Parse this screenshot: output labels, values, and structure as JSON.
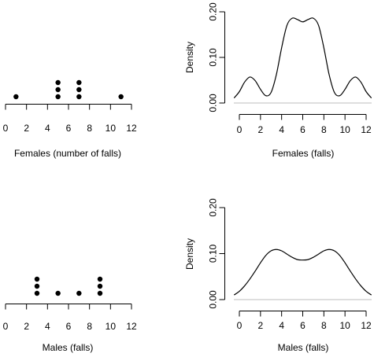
{
  "chart_data": [
    {
      "type": "scatter",
      "subtype": "dotplot",
      "xlabel": "Females (number of falls)",
      "xlim": [
        0,
        12
      ],
      "xticks": [
        0,
        2,
        4,
        6,
        8,
        10,
        12
      ],
      "values": [
        1,
        5,
        5,
        5,
        7,
        7,
        7,
        11
      ]
    },
    {
      "type": "line",
      "subtype": "density",
      "xlabel": "Females (falls)",
      "ylabel": "Density",
      "xlim": [
        0,
        12
      ],
      "ylim": [
        0,
        0.2
      ],
      "xticks": [
        0,
        2,
        4,
        6,
        8,
        10,
        12
      ],
      "yticks": [
        "0.00",
        "0.10",
        "0.20"
      ],
      "x": [
        -0.5,
        0,
        0.5,
        1,
        1.5,
        2,
        2.5,
        3,
        3.5,
        4,
        4.5,
        5,
        5.5,
        6,
        6.5,
        7,
        7.5,
        8,
        8.5,
        9,
        9.5,
        10,
        10.5,
        11,
        11.5,
        12,
        12.5
      ],
      "y": [
        0.011,
        0.025,
        0.046,
        0.057,
        0.049,
        0.03,
        0.016,
        0.023,
        0.062,
        0.121,
        0.17,
        0.186,
        0.183,
        0.178,
        0.183,
        0.186,
        0.17,
        0.121,
        0.062,
        0.023,
        0.016,
        0.03,
        0.049,
        0.057,
        0.046,
        0.025,
        0.011
      ]
    },
    {
      "type": "scatter",
      "subtype": "dotplot",
      "xlabel": "Males (falls)",
      "xlim": [
        0,
        12
      ],
      "xticks": [
        0,
        2,
        4,
        6,
        8,
        10,
        12
      ],
      "values": [
        3,
        3,
        3,
        5,
        7,
        9,
        9,
        9
      ]
    },
    {
      "type": "line",
      "subtype": "density",
      "xlabel": "Males (falls)",
      "ylabel": "Density",
      "xlim": [
        0,
        12
      ],
      "ylim": [
        0,
        0.2
      ],
      "xticks": [
        0,
        2,
        4,
        6,
        8,
        10,
        12
      ],
      "yticks": [
        "0.00",
        "0.10",
        "0.20"
      ],
      "x": [
        -0.5,
        0,
        0.5,
        1,
        1.5,
        2,
        2.5,
        3,
        3.5,
        4,
        4.5,
        5,
        5.5,
        6,
        6.5,
        7,
        7.5,
        8,
        8.5,
        9,
        9.5,
        10,
        10.5,
        11,
        11.5,
        12,
        12.5
      ],
      "y": [
        0.01,
        0.018,
        0.03,
        0.045,
        0.062,
        0.08,
        0.096,
        0.106,
        0.109,
        0.106,
        0.099,
        0.092,
        0.087,
        0.086,
        0.087,
        0.092,
        0.099,
        0.106,
        0.109,
        0.106,
        0.096,
        0.08,
        0.062,
        0.045,
        0.03,
        0.018,
        0.01
      ]
    }
  ]
}
